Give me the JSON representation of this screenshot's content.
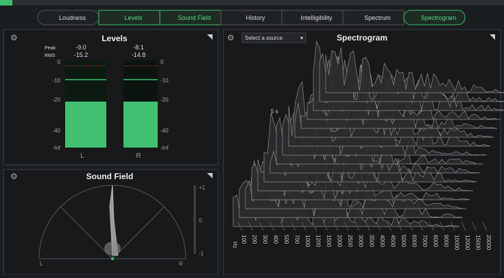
{
  "tabs": [
    "Loudness",
    "Levels",
    "Sound Field",
    "History",
    "Intelligibility",
    "Spectrum",
    "Spectrogram"
  ],
  "levels": {
    "title": "Levels",
    "peak_label": "Peak",
    "rms_label": "RMS",
    "left": {
      "peak": "-9.0",
      "rms": "-15.2",
      "label": "L"
    },
    "right": {
      "peak": "-8.1",
      "rms": "-14.8",
      "label": "R"
    },
    "scale": [
      "0",
      "-10",
      "-20",
      "-40",
      "-Inf"
    ]
  },
  "sound_field": {
    "title": "Sound Field",
    "scale": [
      "+1",
      "0",
      "-1"
    ],
    "left": "L",
    "right": "R"
  },
  "spectrogram": {
    "title": "Spectrogram",
    "source": "Select a source",
    "time": "5 s",
    "unit": "Hz",
    "frequencies": [
      "100",
      "200",
      "300",
      "400",
      "500",
      "700",
      "1000",
      "1200",
      "1500",
      "2000",
      "2500",
      "3000",
      "3500",
      "4000",
      "4500",
      "5000",
      "6000",
      "7000",
      "8000",
      "9000",
      "10000",
      "12000",
      "15000",
      "20000"
    ]
  }
}
